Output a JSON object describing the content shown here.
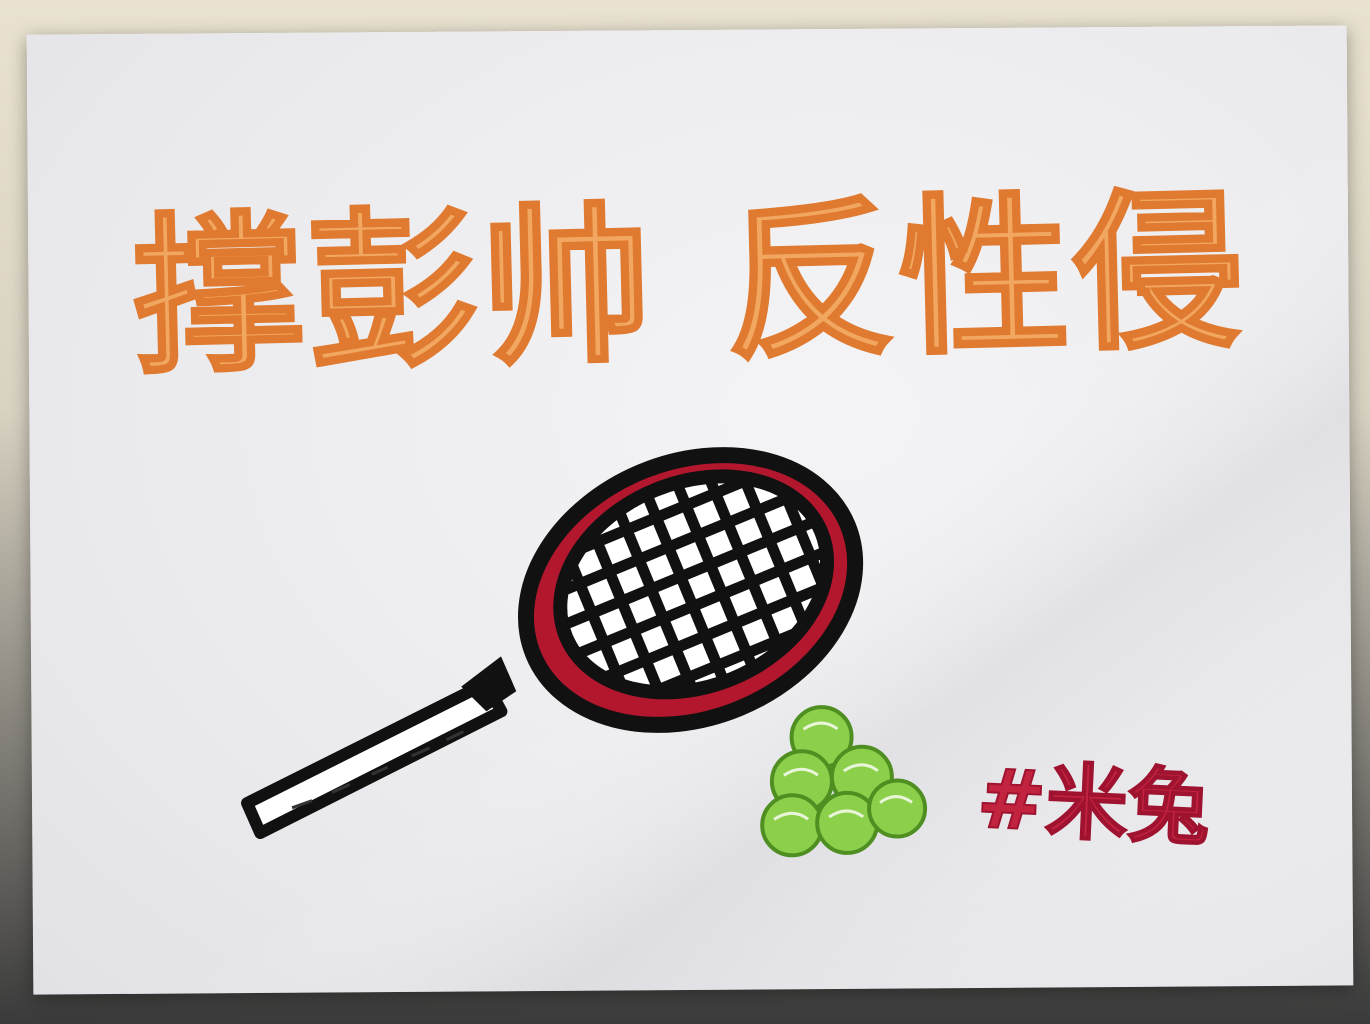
{
  "drawing": {
    "slogan_left": "撑彭帅",
    "slogan_right": "反性侵",
    "signature": "#米兔",
    "colors": {
      "slogan": "#f2a760",
      "racket_frame": "#111111",
      "racket_accent": "#b3172e",
      "balls": "#8ccf4a",
      "signature": "#c2233f"
    },
    "objects": [
      "tennis-racket",
      "tennis-balls"
    ]
  }
}
